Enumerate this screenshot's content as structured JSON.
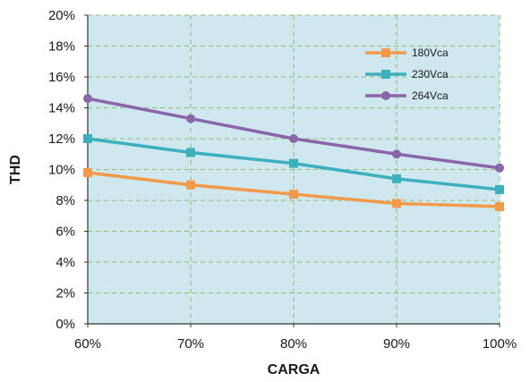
{
  "chart_data": {
    "type": "line",
    "title": "",
    "xlabel": "CARGA",
    "ylabel": "THD",
    "categories": [
      "60%",
      "70%",
      "80%",
      "90%",
      "100%"
    ],
    "x": [
      60,
      70,
      80,
      90,
      100
    ],
    "ylim": [
      0,
      20
    ],
    "yticks": [
      "0%",
      "2%",
      "4%",
      "6%",
      "8%",
      "10%",
      "12%",
      "14%",
      "16%",
      "18%",
      "20%"
    ],
    "grid": true,
    "legend_position": "top-right",
    "series": [
      {
        "name": "180Vca",
        "color": "#f39a4a",
        "marker": "square",
        "values": [
          9.8,
          9.0,
          8.4,
          7.8,
          7.6
        ]
      },
      {
        "name": "230Vca",
        "color": "#3cb0bd",
        "marker": "square",
        "values": [
          12.0,
          11.1,
          10.4,
          9.4,
          8.7
        ]
      },
      {
        "name": "264Vca",
        "color": "#8a65a8",
        "marker": "circle",
        "values": [
          14.6,
          13.3,
          12.0,
          11.0,
          10.1
        ]
      }
    ],
    "colors": {
      "plot_background": "#cfe7ee",
      "grid": "#8bbf6a"
    }
  }
}
